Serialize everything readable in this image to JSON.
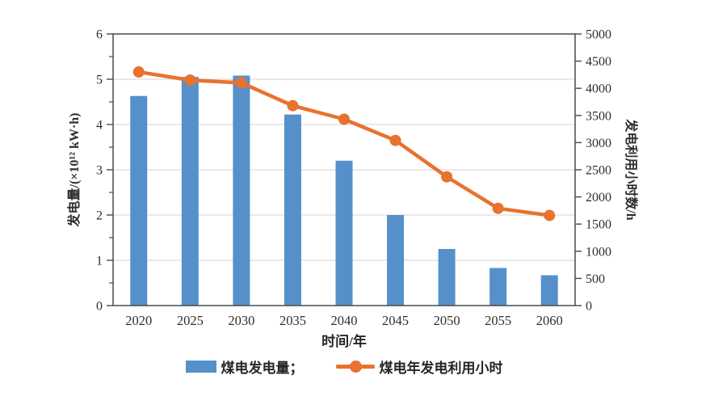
{
  "chart_data": {
    "type": "combo-bar-line",
    "categories": [
      "2020",
      "2025",
      "2030",
      "2035",
      "2040",
      "2045",
      "2050",
      "2055",
      "2060"
    ],
    "series": [
      {
        "name": "煤电发电量",
        "type": "bar",
        "axis": "left",
        "values": [
          4.63,
          5.05,
          5.08,
          4.22,
          3.2,
          2.0,
          1.25,
          0.83,
          0.67
        ]
      },
      {
        "name": "煤电年发电利用小时",
        "type": "line",
        "axis": "right",
        "values": [
          4300,
          4150,
          4100,
          3680,
          3430,
          3040,
          2370,
          1790,
          1660
        ]
      }
    ],
    "left_axis": {
      "label": "发电量/(×10¹² kW·h)",
      "min": 0,
      "max": 6,
      "major_ticks": [
        0,
        1,
        2,
        3,
        4,
        5,
        6
      ],
      "minor_ticks": [
        0.5,
        1.5,
        2.5,
        3.5,
        4.5,
        5.5
      ]
    },
    "right_axis": {
      "label": "发电利用小时数/h",
      "min": 0,
      "max": 5000,
      "ticks": [
        0,
        500,
        1000,
        1500,
        2000,
        2500,
        3000,
        3500,
        4000,
        4500,
        5000
      ]
    },
    "x_axis": {
      "label": "时间/年"
    },
    "legend": {
      "bar_label": "煤电发电量；",
      "line_label": "煤电年发电利用小时"
    },
    "grid": true,
    "colors": {
      "bar": "#5590CB",
      "line": "#E8722F",
      "axis": "#4A4A4A",
      "grid": "#DCDCDC",
      "text": "#2E2E2E"
    }
  }
}
